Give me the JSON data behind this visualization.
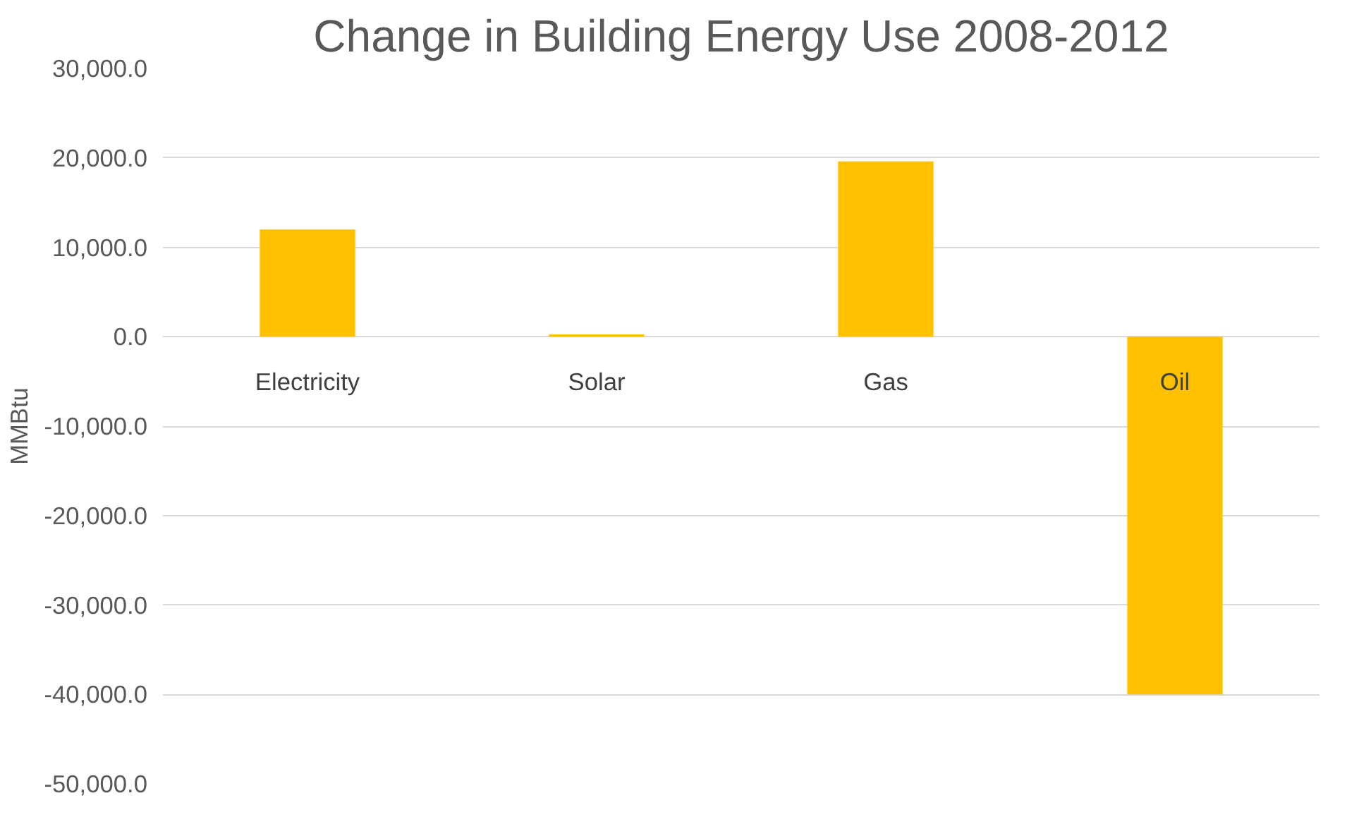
{
  "chart_data": {
    "type": "bar",
    "title": "Change in Building Energy Use 2008-2012",
    "ylabel": "MMBtu",
    "categories": [
      "Electricity",
      "Solar",
      "Gas",
      "Oil"
    ],
    "values": [
      12000,
      250,
      19600,
      -40000
    ],
    "color": "#ffc000",
    "ylim": [
      -50000,
      30000
    ],
    "yticks": [
      {
        "value": 30000,
        "label": "30,000.0"
      },
      {
        "value": 20000,
        "label": "20,000.0"
      },
      {
        "value": 10000,
        "label": "10,000.0"
      },
      {
        "value": 0,
        "label": "0.0"
      },
      {
        "value": -10000,
        "label": "-10,000.0"
      },
      {
        "value": -20000,
        "label": "-20,000.0"
      },
      {
        "value": -30000,
        "label": "-30,000.0"
      },
      {
        "value": -40000,
        "label": "-40,000.0"
      },
      {
        "value": -50000,
        "label": "-50,000.0"
      }
    ],
    "grid": "y"
  }
}
